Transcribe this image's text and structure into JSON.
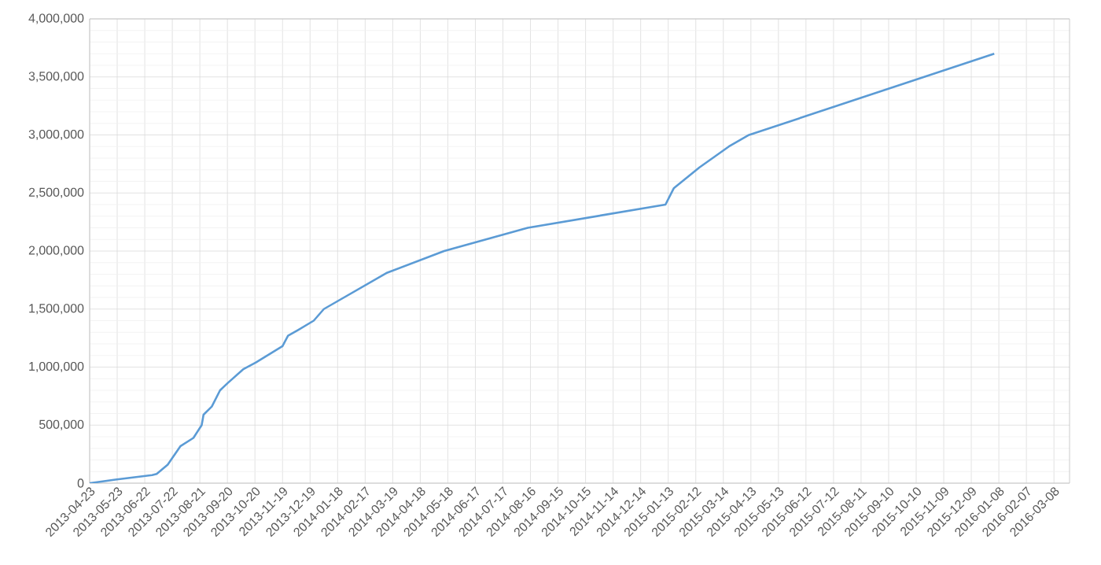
{
  "chart_data": {
    "type": "line",
    "x": [
      "2013-04-23",
      "2013-05-21",
      "2013-06-30",
      "2013-07-05",
      "2013-07-17",
      "2013-07-31",
      "2013-08-14",
      "2013-08-23",
      "2013-08-25",
      "2013-09-03",
      "2013-09-12",
      "2013-09-20",
      "2013-10-07",
      "2013-10-21",
      "2013-11-19",
      "2013-11-25",
      "2013-12-06",
      "2013-12-23",
      "2014-01-03",
      "2014-03-12",
      "2014-05-14",
      "2014-08-13",
      "2015-01-10",
      "2015-01-19",
      "2015-02-16",
      "2015-03-20",
      "2015-04-11",
      "2016-01-03"
    ],
    "series": [
      {
        "color": "#5b9bd5",
        "values": [
          0,
          30000,
          70000,
          80000,
          160000,
          320000,
          390000,
          500000,
          590000,
          660000,
          800000,
          860000,
          980000,
          1040000,
          1180000,
          1270000,
          1320000,
          1400000,
          1500000,
          1810000,
          2000000,
          2200000,
          2400000,
          2540000,
          2720000,
          2900000,
          3000000,
          3700000
        ]
      }
    ],
    "xlim": [
      "2013-04-23",
      "2016-03-25"
    ],
    "xticks": [
      "2013-04-23",
      "2013-05-23",
      "2013-06-22",
      "2013-07-22",
      "2013-08-21",
      "2013-09-20",
      "2013-10-20",
      "2013-11-19",
      "2013-12-19",
      "2014-01-18",
      "2014-02-17",
      "2014-03-19",
      "2014-04-18",
      "2014-05-18",
      "2014-06-17",
      "2014-07-17",
      "2014-08-16",
      "2014-09-15",
      "2014-10-15",
      "2014-11-14",
      "2014-12-14",
      "2015-01-13",
      "2015-02-12",
      "2015-03-14",
      "2015-04-13",
      "2015-05-13",
      "2015-06-12",
      "2015-07-12",
      "2015-08-11",
      "2015-09-10",
      "2015-10-10",
      "2015-11-09",
      "2015-12-09",
      "2016-01-08",
      "2016-02-07",
      "2016-03-08"
    ],
    "ylim": [
      0,
      4000000
    ],
    "yticks": [
      {
        "value": 0,
        "label": "0"
      },
      {
        "value": 500000,
        "label": "500,000"
      },
      {
        "value": 1000000,
        "label": "1,000,000"
      },
      {
        "value": 1500000,
        "label": "1,500,000"
      },
      {
        "value": 2000000,
        "label": "2,000,000"
      },
      {
        "value": 2500000,
        "label": "2,500,000"
      },
      {
        "value": 3000000,
        "label": "3,000,000"
      },
      {
        "value": 3500000,
        "label": "3,500,000"
      },
      {
        "value": 4000000,
        "label": "4,000,000"
      }
    ],
    "grid": true,
    "marker": "none",
    "line_style": "solid"
  }
}
